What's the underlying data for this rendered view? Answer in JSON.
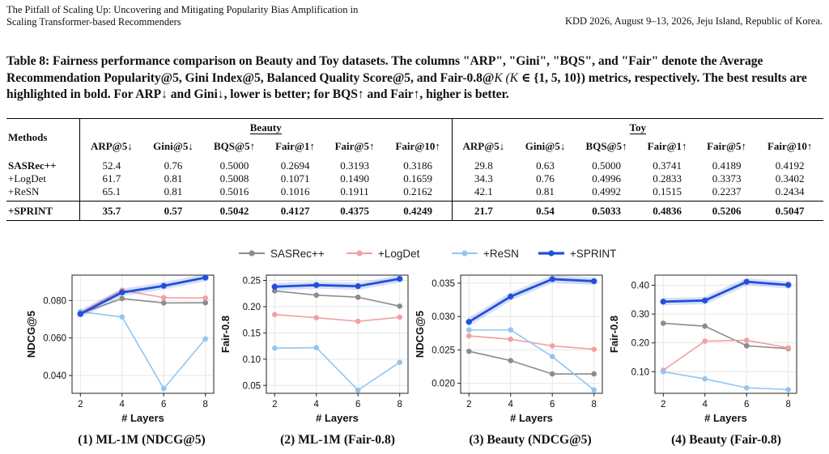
{
  "header": {
    "title_line1": "The Pitfall of Scaling Up: Uncovering and Mitigating Popularity Bias Amplification in",
    "title_line2": "Scaling Transformer-based Recommenders",
    "venue": "KDD 2026, August 9–13, 2026, Jeju Island, Republic of Korea."
  },
  "caption": {
    "part1": "Table 8: Fairness performance comparison on Beauty and Toy datasets. The columns \"ARP\", \"Gini\", \"BQS\", and \"Fair\" denote the Average Recommendation Popularity@5, Gini Index@5, Balanced Quality Score@5, and Fair-0.8@",
    "math1": "K (K",
    "part2": " ∈ {1, 5, 10}) metrics, respectively. The best results are highlighted in bold. For ARP↓ and Gini↓, lower is better; for BQS↑ and Fair↑, higher is better."
  },
  "table": {
    "methods_header": "Methods",
    "groups": [
      "Beauty",
      "Toy"
    ],
    "columns": [
      "ARP@5↓",
      "Gini@5↓",
      "BQS@5↑",
      "Fair@1↑",
      "Fair@5↑",
      "Fair@10↑"
    ],
    "rows": [
      {
        "method": "SASRec++",
        "values": [
          "52.4",
          "0.76",
          "0.5000",
          "0.2694",
          "0.3193",
          "0.3186",
          "29.8",
          "0.63",
          "0.5000",
          "0.3741",
          "0.4189",
          "0.4192"
        ]
      },
      {
        "method": "+LogDet",
        "values": [
          "61.7",
          "0.81",
          "0.5008",
          "0.1071",
          "0.1490",
          "0.1659",
          "34.3",
          "0.76",
          "0.4996",
          "0.2833",
          "0.3373",
          "0.3402"
        ]
      },
      {
        "method": "+ReSN",
        "values": [
          "65.1",
          "0.81",
          "0.5016",
          "0.1016",
          "0.1911",
          "0.2162",
          "42.1",
          "0.81",
          "0.4992",
          "0.1515",
          "0.2237",
          "0.2434"
        ]
      },
      {
        "method": "+SPRINT",
        "values": [
          "35.7",
          "0.57",
          "0.5042",
          "0.4127",
          "0.4375",
          "0.4249",
          "21.7",
          "0.54",
          "0.5033",
          "0.4836",
          "0.5206",
          "0.5047"
        ]
      }
    ]
  },
  "legend": [
    {
      "name": "SASRec++",
      "color": "#8c8c8c"
    },
    {
      "name": "+LogDet",
      "color": "#f2a0a0"
    },
    {
      "name": "+ReSN",
      "color": "#92c5f2"
    },
    {
      "name": "+SPRINT",
      "color": "#2150d8"
    }
  ],
  "chart_data": [
    {
      "type": "line",
      "title": "(1) ML-1M (NDCG@5)",
      "xlabel": "# Layers",
      "ylabel": "NDCG@5",
      "x": [
        2,
        4,
        6,
        8
      ],
      "xlim": [
        1.6,
        8.4
      ],
      "ylim": [
        0.0305,
        0.0935
      ],
      "yticks": [
        0.04,
        0.06,
        0.08
      ],
      "ytick_labels": [
        "0.040",
        "0.060",
        "0.080"
      ],
      "series": [
        {
          "name": "SASRec++",
          "values": [
            0.073,
            0.081,
            0.0787,
            0.0788
          ]
        },
        {
          "name": "+LogDet",
          "values": [
            0.0735,
            0.0855,
            0.0815,
            0.0813
          ]
        },
        {
          "name": "+ReSN",
          "values": [
            0.074,
            0.0712,
            0.033,
            0.0595
          ]
        },
        {
          "name": "+SPRINT",
          "values": [
            0.0728,
            0.0843,
            0.0878,
            0.0922
          ]
        }
      ]
    },
    {
      "type": "line",
      "title": "(2) ML-1M (Fair-0.8)",
      "xlabel": "# Layers",
      "ylabel": "Fair-0.8",
      "x": [
        2,
        4,
        6,
        8
      ],
      "xlim": [
        1.6,
        8.4
      ],
      "ylim": [
        0.035,
        0.26
      ],
      "yticks": [
        0.05,
        0.1,
        0.15,
        0.2,
        0.25
      ],
      "ytick_labels": [
        "0.05",
        "0.10",
        "0.15",
        "0.20",
        "0.25"
      ],
      "series": [
        {
          "name": "SASRec++",
          "values": [
            0.23,
            0.222,
            0.218,
            0.201
          ]
        },
        {
          "name": "+LogDet",
          "values": [
            0.185,
            0.179,
            0.172,
            0.18
          ]
        },
        {
          "name": "+ReSN",
          "values": [
            0.121,
            0.122,
            0.041,
            0.094
          ]
        },
        {
          "name": "+SPRINT",
          "values": [
            0.238,
            0.241,
            0.239,
            0.253
          ]
        }
      ]
    },
    {
      "type": "line",
      "title": "(3) Beauty (NDCG@5)",
      "xlabel": "# Layers",
      "ylabel": "NDCG@5",
      "x": [
        2,
        4,
        6,
        8
      ],
      "xlim": [
        1.6,
        8.4
      ],
      "ylim": [
        0.0185,
        0.0362
      ],
      "yticks": [
        0.02,
        0.025,
        0.03,
        0.035
      ],
      "ytick_labels": [
        "0.020",
        "0.025",
        "0.030",
        "0.035"
      ],
      "series": [
        {
          "name": "SASRec++",
          "values": [
            0.0248,
            0.0234,
            0.0214,
            0.0214
          ]
        },
        {
          "name": "+LogDet",
          "values": [
            0.0271,
            0.0266,
            0.0256,
            0.0251
          ]
        },
        {
          "name": "+ReSN",
          "values": [
            0.028,
            0.028,
            0.024,
            0.019
          ]
        },
        {
          "name": "+SPRINT",
          "values": [
            0.0292,
            0.033,
            0.0356,
            0.0353
          ]
        }
      ]
    },
    {
      "type": "line",
      "title": "(4) Beauty (Fair-0.8)",
      "xlabel": "# Layers",
      "ylabel": "Fair-0.8",
      "x": [
        2,
        4,
        6,
        8
      ],
      "xlim": [
        1.6,
        8.4
      ],
      "ylim": [
        0.025,
        0.435
      ],
      "yticks": [
        0.1,
        0.2,
        0.3,
        0.4
      ],
      "ytick_labels": [
        "0.10",
        "0.20",
        "0.30",
        "0.40"
      ],
      "series": [
        {
          "name": "SASRec++",
          "values": [
            0.268,
            0.258,
            0.19,
            0.18
          ]
        },
        {
          "name": "+LogDet",
          "values": [
            0.105,
            0.206,
            0.209,
            0.183
          ]
        },
        {
          "name": "+ReSN",
          "values": [
            0.1,
            0.075,
            0.044,
            0.038
          ]
        },
        {
          "name": "+SPRINT",
          "values": [
            0.343,
            0.347,
            0.412,
            0.401
          ]
        }
      ]
    }
  ]
}
